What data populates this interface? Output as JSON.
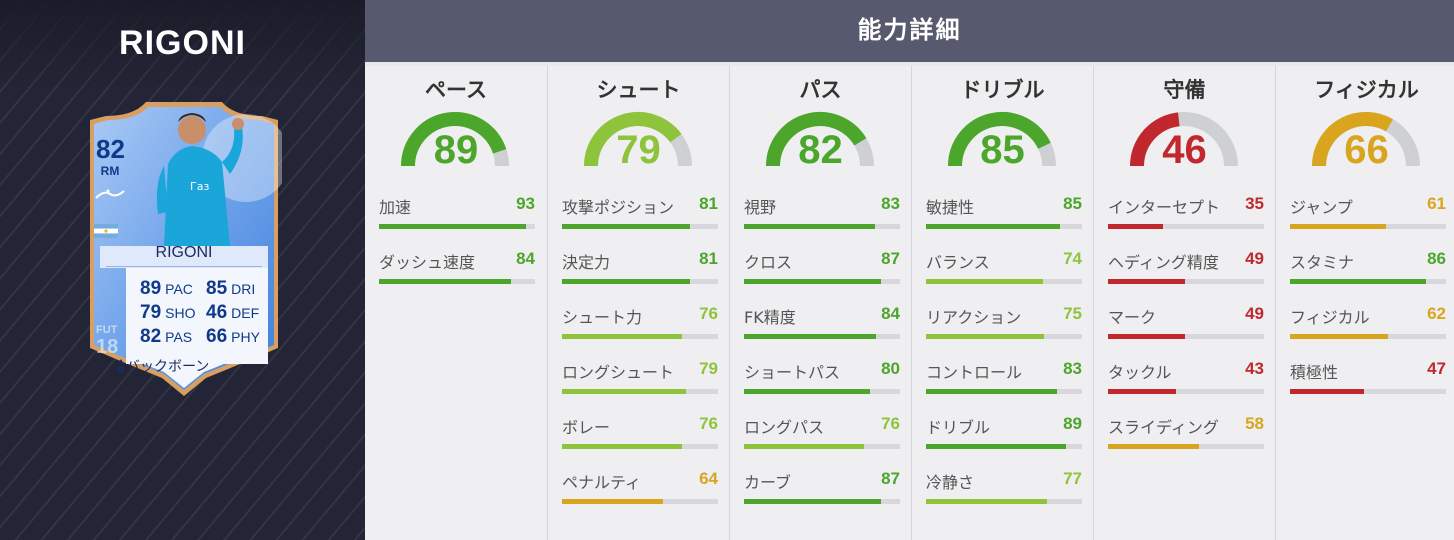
{
  "player_title": "RIGONI",
  "header_title": "能力詳細",
  "card": {
    "rating": "82",
    "position": "RM",
    "name": "RIGONI",
    "fut_label": "FUT",
    "fut_year": "18",
    "chemistry_style": "バックボーン",
    "stats": [
      {
        "value": "89",
        "key": "PAC"
      },
      {
        "value": "85",
        "key": "DRI"
      },
      {
        "value": "79",
        "key": "SHO"
      },
      {
        "value": "46",
        "key": "DEF"
      },
      {
        "value": "82",
        "key": "PAS"
      },
      {
        "value": "66",
        "key": "PHY"
      }
    ],
    "colors": {
      "card": "#6fa3ea",
      "border": "#d89e62",
      "text": "#0f3a8a"
    }
  },
  "colors": {
    "high": "#4ca62b",
    "good": "#8ec43c",
    "mid": "#d9a51f",
    "low": "#c0282e",
    "track": "#d8d8dc"
  },
  "categories": [
    {
      "title": "ペース",
      "value": 89,
      "stats": [
        {
          "label": "加速",
          "value": 93
        },
        {
          "label": "ダッシュ速度",
          "value": 84
        }
      ]
    },
    {
      "title": "シュート",
      "value": 79,
      "stats": [
        {
          "label": "攻撃ポジション",
          "value": 81
        },
        {
          "label": "決定力",
          "value": 81
        },
        {
          "label": "シュート力",
          "value": 76
        },
        {
          "label": "ロングシュート",
          "value": 79
        },
        {
          "label": "ボレー",
          "value": 76
        },
        {
          "label": "ペナルティ",
          "value": 64
        }
      ]
    },
    {
      "title": "パス",
      "value": 82,
      "stats": [
        {
          "label": "視野",
          "value": 83
        },
        {
          "label": "クロス",
          "value": 87
        },
        {
          "label": "FK精度",
          "value": 84
        },
        {
          "label": "ショートパス",
          "value": 80
        },
        {
          "label": "ロングパス",
          "value": 76
        },
        {
          "label": "カーブ",
          "value": 87
        }
      ]
    },
    {
      "title": "ドリブル",
      "value": 85,
      "stats": [
        {
          "label": "敏捷性",
          "value": 85
        },
        {
          "label": "バランス",
          "value": 74
        },
        {
          "label": "リアクション",
          "value": 75
        },
        {
          "label": "コントロール",
          "value": 83
        },
        {
          "label": "ドリブル",
          "value": 89
        },
        {
          "label": "冷静さ",
          "value": 77
        }
      ]
    },
    {
      "title": "守備",
      "value": 46,
      "stats": [
        {
          "label": "インターセプト",
          "value": 35
        },
        {
          "label": "ヘディング精度",
          "value": 49
        },
        {
          "label": "マーク",
          "value": 49
        },
        {
          "label": "タックル",
          "value": 43
        },
        {
          "label": "スライディング",
          "value": 58
        }
      ]
    },
    {
      "title": "フィジカル",
      "value": 66,
      "stats": [
        {
          "label": "ジャンプ",
          "value": 61
        },
        {
          "label": "スタミナ",
          "value": 86
        },
        {
          "label": "フィジカル",
          "value": 62
        },
        {
          "label": "積極性",
          "value": 47
        }
      ]
    }
  ]
}
